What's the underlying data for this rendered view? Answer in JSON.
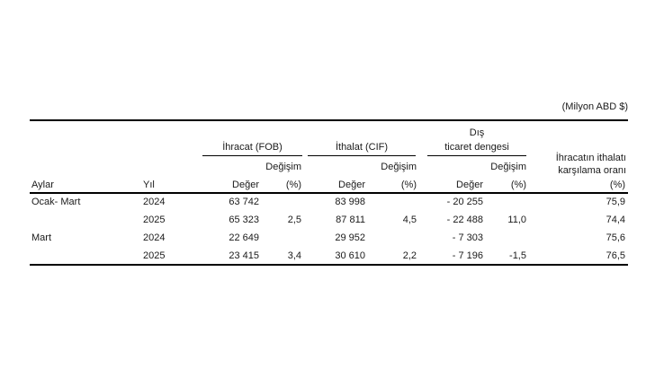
{
  "page": {
    "background": "#ffffff",
    "text_color": "#1a1a1a",
    "rule_color": "#000000"
  },
  "table": {
    "unit_label": "(Milyon ABD $)",
    "header": {
      "aylar": "Aylar",
      "yil": "Yıl",
      "deger": "Değer",
      "degisim": "Değişim",
      "pct": "(%)",
      "group_ihracat": "İhracat (FOB)",
      "group_ithalat": "İthalat (CIF)",
      "group_dis_line1": "Dış",
      "group_dis_line2": "ticaret dengesi",
      "group_oran_line1": "İhracatın ithalatı",
      "group_oran_line2": "karşılama oranı"
    },
    "rows": [
      {
        "aylar": "Ocak- Mart",
        "yil": "2024",
        "ihracat_deger": "63 742",
        "ihracat_degisim": "",
        "ithalat_deger": "83 998",
        "ithalat_degisim": "",
        "denge_deger": "- 20 255",
        "denge_degisim": "",
        "oran": "75,9"
      },
      {
        "aylar": "",
        "yil": "2025",
        "ihracat_deger": "65 323",
        "ihracat_degisim": "2,5",
        "ithalat_deger": "87 811",
        "ithalat_degisim": "4,5",
        "denge_deger": "- 22 488",
        "denge_degisim": "11,0",
        "oran": "74,4"
      },
      {
        "aylar": "Mart",
        "yil": "2024",
        "ihracat_deger": "22 649",
        "ihracat_degisim": "",
        "ithalat_deger": "29 952",
        "ithalat_degisim": "",
        "denge_deger": "- 7 303",
        "denge_degisim": "",
        "oran": "75,6"
      },
      {
        "aylar": "",
        "yil": "2025",
        "ihracat_deger": "23 415",
        "ihracat_degisim": "3,4",
        "ithalat_deger": "30 610",
        "ithalat_degisim": "2,2",
        "denge_deger": "- 7 196",
        "denge_degisim": "-1,5",
        "oran": "76,5"
      }
    ]
  },
  "chart_data": {
    "type": "table",
    "unit": "(Milyon ABD $)",
    "columns": [
      "Aylar",
      "Yıl",
      "İhracat (FOB) Değer",
      "İhracat (FOB) Değişim (%)",
      "İthalat (CIF) Değer",
      "İthalat (CIF) Değişim (%)",
      "Dış ticaret dengesi Değer",
      "Dış ticaret dengesi Değişim (%)",
      "İhracatın ithalatı karşılama oranı (%)"
    ],
    "rows": [
      [
        "Ocak- Mart",
        2024,
        63742,
        null,
        83998,
        null,
        -20255,
        null,
        75.9
      ],
      [
        "",
        2025,
        65323,
        2.5,
        87811,
        4.5,
        -22488,
        11.0,
        74.4
      ],
      [
        "Mart",
        2024,
        22649,
        null,
        29952,
        null,
        -7303,
        null,
        75.6
      ],
      [
        "",
        2025,
        23415,
        3.4,
        30610,
        2.2,
        -7196,
        -1.5,
        76.5
      ]
    ]
  }
}
